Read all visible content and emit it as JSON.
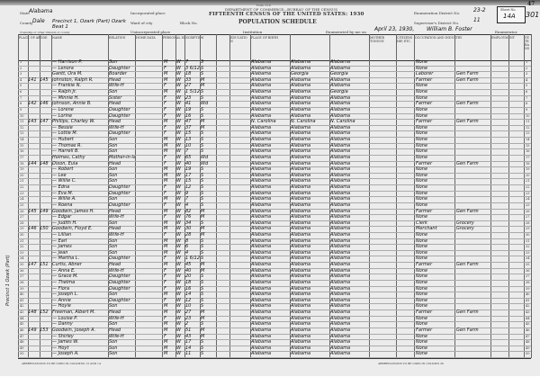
{
  "header": {
    "form_no": "Form 15-6",
    "department": "DEPARTMENT OF COMMERCE—BUREAU OF THE CENSUS",
    "title": "FIFTEENTH CENSUS OF THE UNITED STATES: 1930",
    "schedule": "POPULATION SCHEDULE",
    "state_label": "State",
    "state": "Alabama",
    "county_label": "County",
    "county": "Dale",
    "township_label": "Township or other division of county",
    "township": "Precinct 1, Ozark (Part) Ozark Beat 1",
    "incorporated_label": "Incorporated place",
    "ward_label": "Ward of city",
    "block_label": "Block No.",
    "unincorporated_label": "Unincorporated place",
    "institution_label": "Institution",
    "enum_district_label": "Enumeration District No.",
    "enum_district": "23-2",
    "supervisor_district_label": "Supervisor's District No.",
    "supervisor_district": "11",
    "enumerated_label": "Enumerated by me on",
    "enumerated_date": "April 23, 1930,",
    "enumerator": "William B. Foster",
    "enumerator_suffix": "Enumerator.",
    "sheet_label": "Sheet No.",
    "sheet_no": "14A",
    "stamp": "301",
    "corner_no": "47"
  },
  "column_groups": [
    "PLACE OF ABODE",
    "NAME",
    "RELATION",
    "HOME DATA",
    "PERSONAL DESCRIPTION",
    "EDUCATION",
    "PLACE OF BIRTH",
    "MOTHER TONGUE",
    "CITIZENSHIP, ETC.",
    "OCCUPATION AND INDUSTRY",
    "EMPLOYMENT",
    "VETERANS"
  ],
  "margin_note": "Precinct 1 Ozark (Part)",
  "rows": [
    {
      "dw": "",
      "fam": "",
      "name": "— Harrison P.",
      "rel": "Son",
      "sex": "M",
      "color": "W",
      "age": "7",
      "ms": "S",
      "bp": "Alabama",
      "fbp": "Alabama",
      "mbp": "Alabama",
      "occ": "None",
      "ind": ""
    },
    {
      "dw": "",
      "fam": "",
      "name": "— Lenora",
      "rel": "Daughter",
      "sex": "F",
      "color": "W",
      "age": "3 6/12",
      "ms": "S",
      "bp": "Alabama",
      "fbp": "Alabama",
      "mbp": "Alabama",
      "occ": "None",
      "ind": ""
    },
    {
      "dw": "",
      "fam": "",
      "name": "Gantt, Ora M.",
      "rel": "Boarder",
      "sex": "M",
      "color": "W",
      "age": "18",
      "ms": "S",
      "bp": "Alabama",
      "fbp": "Georgia",
      "mbp": "Georgia",
      "occ": "Laborer",
      "ind": "Gen Farm"
    },
    {
      "dw": "141",
      "fam": "145",
      "name": "Johnston, Ralph R.",
      "rel": "Head",
      "sex": "M",
      "color": "W",
      "age": "33",
      "ms": "M",
      "bp": "Alabama",
      "fbp": "Alabama",
      "mbp": "Alabama",
      "occ": "Farmer",
      "ind": "Gen Farm"
    },
    {
      "dw": "",
      "fam": "",
      "name": "— Frankie N.",
      "rel": "Wife-H",
      "sex": "F",
      "color": "W",
      "age": "27",
      "ms": "M",
      "bp": "Alabama",
      "fbp": "Alabama",
      "mbp": "Alabama",
      "occ": "None",
      "ind": ""
    },
    {
      "dw": "",
      "fam": "",
      "name": "— Ralph Jr.",
      "rel": "Son",
      "sex": "M",
      "color": "W",
      "age": "1 5/12",
      "ms": "S",
      "bp": "Alabama",
      "fbp": "Alabama",
      "mbp": "Georgia",
      "occ": "None",
      "ind": ""
    },
    {
      "dw": "",
      "fam": "",
      "name": "— Minnie H.",
      "rel": "Sister",
      "sex": "F",
      "color": "W",
      "age": "23",
      "ms": "S",
      "bp": "Alabama",
      "fbp": "Alabama",
      "mbp": "Alabama",
      "occ": "None",
      "ind": ""
    },
    {
      "dw": "142",
      "fam": "146",
      "name": "Johnson, Annie B.",
      "rel": "Head",
      "sex": "F",
      "color": "W",
      "age": "41",
      "ms": "Wd",
      "bp": "Alabama",
      "fbp": "Alabama",
      "mbp": "Alabama",
      "occ": "Farmer",
      "ind": "Gen Farm"
    },
    {
      "dw": "",
      "fam": "",
      "name": "— Lorene",
      "rel": "Daughter",
      "sex": "F",
      "color": "W",
      "age": "19",
      "ms": "S",
      "bp": "Alabama",
      "fbp": "Alabama",
      "mbp": "Alabama",
      "occ": "None",
      "ind": ""
    },
    {
      "dw": "",
      "fam": "",
      "name": "— Lorine",
      "rel": "Daughter",
      "sex": "F",
      "color": "W",
      "age": "16",
      "ms": "S",
      "bp": "Alabama",
      "fbp": "Alabama",
      "mbp": "Alabama",
      "occ": "None",
      "ind": ""
    },
    {
      "dw": "143",
      "fam": "147",
      "name": "Phillips, Charley W.",
      "rel": "Head",
      "sex": "M",
      "color": "W",
      "age": "47",
      "ms": "M",
      "bp": "N. Carolina",
      "fbp": "N. Carolina",
      "mbp": "N. Carolina",
      "occ": "Farmer",
      "ind": "Gen Farm"
    },
    {
      "dw": "",
      "fam": "",
      "name": "— Bessie",
      "rel": "Wife-H",
      "sex": "F",
      "color": "W",
      "age": "37",
      "ms": "M",
      "bp": "Alabama",
      "fbp": "Alabama",
      "mbp": "Alabama",
      "occ": "None",
      "ind": ""
    },
    {
      "dw": "",
      "fam": "",
      "name": "— Lottie M.",
      "rel": "Daughter",
      "sex": "F",
      "color": "W",
      "age": "15",
      "ms": "S",
      "bp": "Alabama",
      "fbp": "Alabama",
      "mbp": "Alabama",
      "occ": "None",
      "ind": ""
    },
    {
      "dw": "",
      "fam": "",
      "name": "— Hubert",
      "rel": "Son",
      "sex": "M",
      "color": "W",
      "age": "13",
      "ms": "S",
      "bp": "Alabama",
      "fbp": "Alabama",
      "mbp": "Alabama",
      "occ": "None",
      "ind": ""
    },
    {
      "dw": "",
      "fam": "",
      "name": "— Thomas R.",
      "rel": "Son",
      "sex": "M",
      "color": "W",
      "age": "10",
      "ms": "S",
      "bp": "Alabama",
      "fbp": "Alabama",
      "mbp": "Alabama",
      "occ": "None",
      "ind": ""
    },
    {
      "dw": "",
      "fam": "",
      "name": "— Harrell B.",
      "rel": "Son",
      "sex": "M",
      "color": "W",
      "age": "7",
      "ms": "S",
      "bp": "Alabama",
      "fbp": "Alabama",
      "mbp": "Alabama",
      "occ": "None",
      "ind": ""
    },
    {
      "dw": "",
      "fam": "",
      "name": "Holmes, Cathy",
      "rel": "Mother-in-law",
      "sex": "F",
      "color": "W",
      "age": "65",
      "ms": "Wd",
      "bp": "Alabama",
      "fbp": "Alabama",
      "mbp": "Alabama",
      "occ": "None",
      "ind": ""
    },
    {
      "dw": "144",
      "fam": "148",
      "name": "Dixon, Eula",
      "rel": "Head",
      "sex": "F",
      "color": "W",
      "age": "40",
      "ms": "Wd",
      "bp": "Alabama",
      "fbp": "Alabama",
      "mbp": "Alabama",
      "occ": "Farmer",
      "ind": "Gen Farm"
    },
    {
      "dw": "",
      "fam": "",
      "name": "— Robert",
      "rel": "Son",
      "sex": "M",
      "color": "W",
      "age": "19",
      "ms": "S",
      "bp": "Alabama",
      "fbp": "Alabama",
      "mbp": "Alabama",
      "occ": "None",
      "ind": ""
    },
    {
      "dw": "",
      "fam": "",
      "name": "— Lee",
      "rel": "Son",
      "sex": "M",
      "color": "W",
      "age": "17",
      "ms": "S",
      "bp": "Alabama",
      "fbp": "Alabama",
      "mbp": "Alabama",
      "occ": "None",
      "ind": ""
    },
    {
      "dw": "",
      "fam": "",
      "name": "— Willie C.",
      "rel": "Son",
      "sex": "M",
      "color": "W",
      "age": "15",
      "ms": "S",
      "bp": "Alabama",
      "fbp": "Alabama",
      "mbp": "Alabama",
      "occ": "None",
      "ind": ""
    },
    {
      "dw": "",
      "fam": "",
      "name": "— Edna",
      "rel": "Daughter",
      "sex": "F",
      "color": "W",
      "age": "12",
      "ms": "S",
      "bp": "Alabama",
      "fbp": "Alabama",
      "mbp": "Alabama",
      "occ": "None",
      "ind": ""
    },
    {
      "dw": "",
      "fam": "",
      "name": "— Eva M.",
      "rel": "Daughter",
      "sex": "F",
      "color": "W",
      "age": "9",
      "ms": "S",
      "bp": "Alabama",
      "fbp": "Alabama",
      "mbp": "Alabama",
      "occ": "None",
      "ind": ""
    },
    {
      "dw": "",
      "fam": "",
      "name": "— Willie A.",
      "rel": "Son",
      "sex": "M",
      "color": "W",
      "age": "7",
      "ms": "S",
      "bp": "Alabama",
      "fbp": "Alabama",
      "mbp": "Alabama",
      "occ": "None",
      "ind": ""
    },
    {
      "dw": "",
      "fam": "",
      "name": "— Roena",
      "rel": "Daughter",
      "sex": "F",
      "color": "W",
      "age": "4",
      "ms": "S",
      "bp": "Alabama",
      "fbp": "Alabama",
      "mbp": "Alabama",
      "occ": "None",
      "ind": ""
    },
    {
      "dw": "145",
      "fam": "149",
      "name": "Goodwin, James H.",
      "rel": "Head",
      "sex": "M",
      "color": "W",
      "age": "82",
      "ms": "M",
      "bp": "Alabama",
      "fbp": "Alabama",
      "mbp": "Alabama",
      "occ": "Farmer",
      "ind": "Gen Farm"
    },
    {
      "dw": "",
      "fam": "",
      "name": "— Edgar",
      "rel": "Wife-H",
      "sex": "F",
      "color": "W",
      "age": "76",
      "ms": "M",
      "bp": "Alabama",
      "fbp": "Alabama",
      "mbp": "Alabama",
      "occ": "None",
      "ind": ""
    },
    {
      "dw": "",
      "fam": "",
      "name": "— Judith H.",
      "rel": "Son",
      "sex": "M",
      "color": "W",
      "age": "34",
      "ms": "S",
      "bp": "Alabama",
      "fbp": "Alabama",
      "mbp": "Alabama",
      "occ": "Clerk",
      "ind": "Grocery"
    },
    {
      "dw": "146",
      "fam": "150",
      "name": "Goodwin, Floyd E.",
      "rel": "Head",
      "sex": "M",
      "color": "W",
      "age": "30",
      "ms": "M",
      "bp": "Alabama",
      "fbp": "Alabama",
      "mbp": "Alabama",
      "occ": "Merchant",
      "ind": "Grocery"
    },
    {
      "dw": "",
      "fam": "",
      "name": "— Lillian",
      "rel": "Wife-H",
      "sex": "F",
      "color": "W",
      "age": "28",
      "ms": "M",
      "bp": "Alabama",
      "fbp": "Alabama",
      "mbp": "Alabama",
      "occ": "None",
      "ind": ""
    },
    {
      "dw": "",
      "fam": "",
      "name": "— Earl",
      "rel": "Son",
      "sex": "M",
      "color": "W",
      "age": "8",
      "ms": "S",
      "bp": "Alabama",
      "fbp": "Alabama",
      "mbp": "Alabama",
      "occ": "None",
      "ind": ""
    },
    {
      "dw": "",
      "fam": "",
      "name": "— James",
      "rel": "Son",
      "sex": "M",
      "color": "W",
      "age": "6",
      "ms": "S",
      "bp": "Alabama",
      "fbp": "Alabama",
      "mbp": "Alabama",
      "occ": "None",
      "ind": ""
    },
    {
      "dw": "",
      "fam": "",
      "name": "— Jean",
      "rel": "Son",
      "sex": "M",
      "color": "W",
      "age": "4",
      "ms": "S",
      "bp": "Alabama",
      "fbp": "Alabama",
      "mbp": "Alabama",
      "occ": "None",
      "ind": ""
    },
    {
      "dw": "",
      "fam": "",
      "name": "— Martha L.",
      "rel": "Daughter",
      "sex": "F",
      "color": "W",
      "age": "1 6/12",
      "ms": "S",
      "bp": "Alabama",
      "fbp": "Alabama",
      "mbp": "Alabama",
      "occ": "None",
      "ind": ""
    },
    {
      "dw": "147",
      "fam": "151",
      "name": "Curtis, Abner",
      "rel": "Head",
      "sex": "M",
      "color": "W",
      "age": "45",
      "ms": "M",
      "bp": "Alabama",
      "fbp": "Alabama",
      "mbp": "Alabama",
      "occ": "Farmer",
      "ind": "Gen Farm"
    },
    {
      "dw": "",
      "fam": "",
      "name": "— Anna E.",
      "rel": "Wife-H",
      "sex": "F",
      "color": "W",
      "age": "40",
      "ms": "M",
      "bp": "Alabama",
      "fbp": "Alabama",
      "mbp": "Alabama",
      "occ": "None",
      "ind": ""
    },
    {
      "dw": "",
      "fam": "",
      "name": "— Grace M.",
      "rel": "Daughter",
      "sex": "F",
      "color": "W",
      "age": "20",
      "ms": "S",
      "bp": "Alabama",
      "fbp": "Alabama",
      "mbp": "Alabama",
      "occ": "None",
      "ind": ""
    },
    {
      "dw": "",
      "fam": "",
      "name": "— Thelma",
      "rel": "Daughter",
      "sex": "F",
      "color": "W",
      "age": "18",
      "ms": "S",
      "bp": "Alabama",
      "fbp": "Alabama",
      "mbp": "Alabama",
      "occ": "None",
      "ind": ""
    },
    {
      "dw": "",
      "fam": "",
      "name": "— Flora",
      "rel": "Daughter",
      "sex": "F",
      "color": "W",
      "age": "16",
      "ms": "S",
      "bp": "Alabama",
      "fbp": "Alabama",
      "mbp": "Alabama",
      "occ": "None",
      "ind": ""
    },
    {
      "dw": "",
      "fam": "",
      "name": "— Joseph L.",
      "rel": "Son",
      "sex": "M",
      "color": "W",
      "age": "14",
      "ms": "S",
      "bp": "Alabama",
      "fbp": "Alabama",
      "mbp": "Alabama",
      "occ": "None",
      "ind": ""
    },
    {
      "dw": "",
      "fam": "",
      "name": "— Annie",
      "rel": "Daughter",
      "sex": "F",
      "color": "W",
      "age": "12",
      "ms": "S",
      "bp": "Alabama",
      "fbp": "Alabama",
      "mbp": "Alabama",
      "occ": "None",
      "ind": ""
    },
    {
      "dw": "",
      "fam": "",
      "name": "— Hoyle",
      "rel": "Son",
      "sex": "M",
      "color": "W",
      "age": "10",
      "ms": "S",
      "bp": "Alabama",
      "fbp": "Alabama",
      "mbp": "Alabama",
      "occ": "None",
      "ind": ""
    },
    {
      "dw": "148",
      "fam": "152",
      "name": "Freeman, Albert M.",
      "rel": "Head",
      "sex": "M",
      "color": "W",
      "age": "27",
      "ms": "M",
      "bp": "Alabama",
      "fbp": "Alabama",
      "mbp": "Alabama",
      "occ": "Farmer",
      "ind": "Gen Farm"
    },
    {
      "dw": "",
      "fam": "",
      "name": "— Louise P.",
      "rel": "Wife-H",
      "sex": "F",
      "color": "W",
      "age": "23",
      "ms": "M",
      "bp": "Alabama",
      "fbp": "Alabama",
      "mbp": "Alabama",
      "occ": "None",
      "ind": ""
    },
    {
      "dw": "",
      "fam": "",
      "name": "— Danny",
      "rel": "Son",
      "sex": "M",
      "color": "W",
      "age": "2",
      "ms": "S",
      "bp": "Alabama",
      "fbp": "Alabama",
      "mbp": "Alabama",
      "occ": "None",
      "ind": ""
    },
    {
      "dw": "149",
      "fam": "153",
      "name": "Goodwin, Joseph A.",
      "rel": "Head",
      "sex": "M",
      "color": "W",
      "age": "51",
      "ms": "M",
      "bp": "Alabama",
      "fbp": "Alabama",
      "mbp": "Alabama",
      "occ": "Farmer",
      "ind": "Gen Farm"
    },
    {
      "dw": "",
      "fam": "",
      "name": "— Shirley",
      "rel": "Wife-H",
      "sex": "F",
      "color": "W",
      "age": "43",
      "ms": "M",
      "bp": "Alabama",
      "fbp": "Alabama",
      "mbp": "Alabama",
      "occ": "None",
      "ind": ""
    },
    {
      "dw": "",
      "fam": "",
      "name": "— James W.",
      "rel": "Son",
      "sex": "M",
      "color": "W",
      "age": "17",
      "ms": "S",
      "bp": "Alabama",
      "fbp": "Alabama",
      "mbp": "Alabama",
      "occ": "None",
      "ind": ""
    },
    {
      "dw": "",
      "fam": "",
      "name": "— Hoyt",
      "rel": "Son",
      "sex": "M",
      "color": "W",
      "age": "14",
      "ms": "S",
      "bp": "Alabama",
      "fbp": "Alabama",
      "mbp": "Alabama",
      "occ": "None",
      "ind": ""
    },
    {
      "dw": "",
      "fam": "",
      "name": "— Joseph A.",
      "rel": "Son",
      "sex": "M",
      "color": "W",
      "age": "11",
      "ms": "S",
      "bp": "Alabama",
      "fbp": "Alabama",
      "mbp": "Alabama",
      "occ": "None",
      "ind": ""
    }
  ],
  "footer": {
    "left_note": "ABBREVIATIONS TO BE USED IN COLUMNS 13 AND 14",
    "right_note": "ABBREVIATIONS TO BE USED IN COLUMN 26"
  }
}
